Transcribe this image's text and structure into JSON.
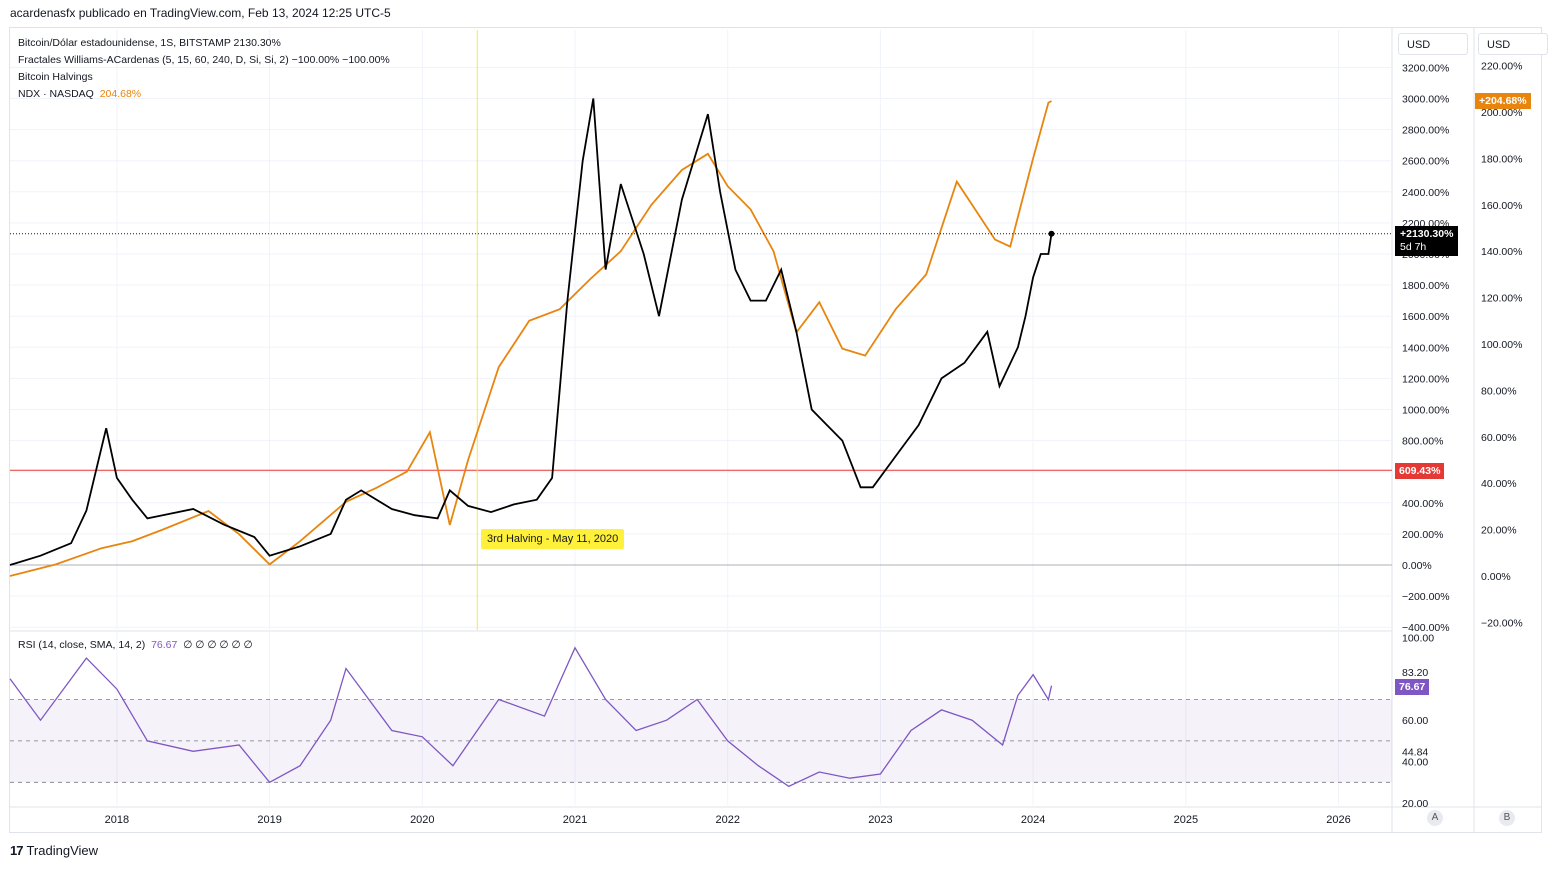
{
  "header": {
    "title": "acardenasfx publicado en TradingView.com, Feb 13, 2024 12:25 UTC-5"
  },
  "legend": {
    "line1": "Bitcoin/Dólar estadounidense, 1S, BITSTAMP  2130.30%",
    "line2": "Fractales Williams-ACardenas (5, 15, 60, 240, D, Si, Si, 2)  −100.00%  −100.00%",
    "line3": "Bitcoin Halvings",
    "line4_name": "NDX · NASDAQ",
    "line4_value": "204.68%"
  },
  "rsi_legend": {
    "label": "RSI (14, close, SMA, 14, 2)",
    "value": "76.67",
    "extras": "∅  ∅  ∅  ∅  ∅  ∅"
  },
  "scale_buttons": {
    "left": "USD",
    "right": "USD"
  },
  "ab": {
    "a": "A",
    "b": "B"
  },
  "footer": {
    "brand": "TradingView",
    "logo": "17"
  },
  "halving_label": "3rd Halving - May 11, 2020",
  "colors": {
    "btc": "#000000",
    "ndx": "#e8850f",
    "rsi": "#7e57c2",
    "ref_line": "#e53935",
    "halving": "#ffe633"
  },
  "badges": {
    "ndx": "+204.68%",
    "btc_value": "+2130.30%",
    "btc_time": "5d 7h",
    "level": "609.43%",
    "rsi": "76.67"
  },
  "chart_data": {
    "type": "line",
    "x_ticks": [
      "2018",
      "2019",
      "2020",
      "2021",
      "2022",
      "2023",
      "2024",
      "2025",
      "2026"
    ],
    "left_axis_ticks": [
      "3200.00%",
      "3000.00%",
      "2800.00%",
      "2600.00%",
      "2400.00%",
      "2200.00%",
      "2000.00%",
      "1800.00%",
      "1600.00%",
      "1400.00%",
      "1200.00%",
      "1000.00%",
      "800.00%",
      "600.00%",
      "400.00%",
      "200.00%",
      "0.00%",
      "−200.00%",
      "−400.00%"
    ],
    "right_axis_ticks": [
      "220.00%",
      "200.00%",
      "180.00%",
      "160.00%",
      "140.00%",
      "120.00%",
      "100.00%",
      "80.00%",
      "60.00%",
      "40.00%",
      "20.00%",
      "0.00%",
      "−20.00%"
    ],
    "rsi_axis_ticks": [
      "100.00",
      "83.20",
      "60.00",
      "44.84",
      "40.00",
      "20.00"
    ],
    "series": [
      {
        "name": "Bitcoin/Dólar estadounidense",
        "axis": "left",
        "x": [
          2017.3,
          2017.5,
          2017.7,
          2017.8,
          2017.93,
          2018.0,
          2018.1,
          2018.2,
          2018.3,
          2018.5,
          2018.7,
          2018.9,
          2019.0,
          2019.2,
          2019.4,
          2019.5,
          2019.6,
          2019.8,
          2019.95,
          2020.1,
          2020.18,
          2020.3,
          2020.45,
          2020.6,
          2020.75,
          2020.85,
          2020.95,
          2021.05,
          2021.12,
          2021.2,
          2021.3,
          2021.45,
          2021.55,
          2021.7,
          2021.87,
          2021.95,
          2022.05,
          2022.15,
          2022.25,
          2022.35,
          2022.45,
          2022.55,
          2022.65,
          2022.75,
          2022.87,
          2022.95,
          2023.1,
          2023.25,
          2023.4,
          2023.55,
          2023.7,
          2023.78,
          2023.9,
          2023.95,
          2024.0,
          2024.05,
          2024.1,
          2024.12
        ],
        "y": [
          0,
          60,
          140,
          350,
          880,
          560,
          420,
          300,
          320,
          360,
          260,
          180,
          60,
          120,
          200,
          420,
          480,
          360,
          320,
          300,
          480,
          380,
          340,
          390,
          420,
          560,
          1700,
          2600,
          3000,
          1900,
          2450,
          2000,
          1600,
          2350,
          2900,
          2400,
          1900,
          1700,
          1700,
          1900,
          1500,
          1000,
          900,
          800,
          500,
          500,
          700,
          900,
          1200,
          1300,
          1500,
          1150,
          1400,
          1600,
          1850,
          2000,
          2000,
          2130
        ]
      },
      {
        "name": "NDX · NASDAQ",
        "axis": "right",
        "x": [
          2017.3,
          2017.6,
          2017.9,
          2018.1,
          2018.3,
          2018.6,
          2018.8,
          2019.0,
          2019.2,
          2019.5,
          2019.7,
          2019.9,
          2020.05,
          2020.18,
          2020.3,
          2020.5,
          2020.7,
          2020.9,
          2021.1,
          2021.3,
          2021.5,
          2021.7,
          2021.87,
          2022.0,
          2022.15,
          2022.3,
          2022.45,
          2022.6,
          2022.75,
          2022.9,
          2023.1,
          2023.3,
          2023.5,
          2023.6,
          2023.75,
          2023.85,
          2024.0,
          2024.1,
          2024.12
        ],
        "y": [
          0,
          5,
          12,
          15,
          20,
          28,
          18,
          5,
          15,
          32,
          38,
          45,
          62,
          22,
          50,
          90,
          110,
          115,
          128,
          140,
          160,
          175,
          182,
          168,
          158,
          140,
          105,
          118,
          98,
          95,
          115,
          130,
          170,
          160,
          145,
          142,
          180,
          204,
          204.68
        ]
      }
    ],
    "annotations": [
      {
        "text": "3rd Halving - May 11, 2020",
        "x": 2020.36
      }
    ],
    "ref_line": {
      "axis": "left",
      "value": 609.43
    },
    "rsi": {
      "x": [
        2017.3,
        2017.5,
        2017.8,
        2018.0,
        2018.2,
        2018.5,
        2018.8,
        2019.0,
        2019.2,
        2019.4,
        2019.5,
        2019.8,
        2020.0,
        2020.2,
        2020.5,
        2020.8,
        2021.0,
        2021.2,
        2021.4,
        2021.6,
        2021.8,
        2022.0,
        2022.2,
        2022.4,
        2022.6,
        2022.8,
        2023.0,
        2023.2,
        2023.4,
        2023.6,
        2023.8,
        2023.9,
        2024.0,
        2024.1,
        2024.12
      ],
      "values": [
        80,
        60,
        90,
        75,
        50,
        45,
        48,
        30,
        38,
        60,
        85,
        55,
        52,
        38,
        70,
        62,
        95,
        70,
        55,
        60,
        70,
        50,
        38,
        28,
        35,
        32,
        34,
        55,
        65,
        60,
        48,
        72,
        82,
        70,
        76.67
      ]
    }
  }
}
